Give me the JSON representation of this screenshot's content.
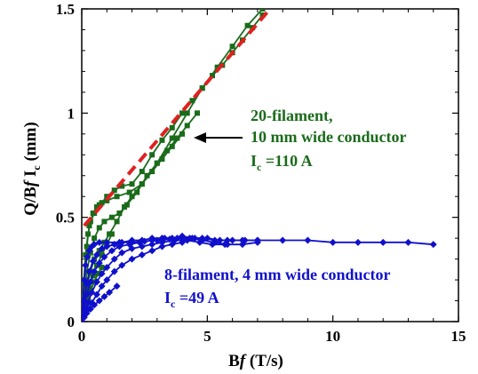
{
  "chart_data": {
    "type": "line",
    "xlabel_main": "B",
    "xlabel_italic": "f",
    "xlabel_unit": " (T/s)",
    "ylabel_main": "Q/B",
    "ylabel_italic": "f",
    "ylabel_I": " I",
    "ylabel_sub": "c",
    "ylabel_unit": " (mm)",
    "xlim": [
      0,
      15
    ],
    "ylim": [
      0,
      1.5
    ],
    "xticks": [
      0,
      5,
      10,
      15
    ],
    "yticks": [
      0,
      0.5,
      1,
      1.5
    ],
    "ytick_labels": [
      "0",
      "0.5",
      "1",
      "1.5"
    ],
    "grid": false,
    "annotations": {
      "green_line1": "20-filament,",
      "green_line2": "10 mm wide conductor",
      "green_ic_I": "I",
      "green_ic_sub": "c",
      "green_ic_val": " =110 A",
      "blue_line1": "8-filament, 4 mm wide conductor",
      "blue_ic_I": "I",
      "blue_ic_sub": "c",
      "blue_ic_val": " =49 A"
    },
    "colors": {
      "green": "#1a6b1a",
      "blue": "#1010cc",
      "red": "#e02020"
    },
    "series": [
      {
        "group": "green",
        "style": "markers",
        "x": [
          0.0,
          0.08,
          0.15,
          0.25,
          0.35,
          0.5,
          0.7,
          1.0,
          1.4,
          1.9,
          2.4,
          3.0,
          3.6,
          4.2,
          4.8,
          5.4,
          6.0,
          6.6,
          7.2
        ],
        "y": [
          0.0,
          0.18,
          0.32,
          0.42,
          0.48,
          0.52,
          0.56,
          0.58,
          0.6,
          0.62,
          0.66,
          0.76,
          0.88,
          1.0,
          1.12,
          1.22,
          1.32,
          1.42,
          1.5
        ]
      },
      {
        "group": "green",
        "style": "markers",
        "x": [
          0.0,
          0.1,
          0.2,
          0.3,
          0.45,
          0.6,
          0.8,
          1.0,
          1.3,
          1.6,
          2.0,
          2.4,
          2.8,
          3.2,
          3.6,
          4.0,
          4.4,
          4.8,
          5.2,
          5.6,
          6.0,
          6.4,
          6.8,
          7.2
        ],
        "y": [
          0.0,
          0.2,
          0.36,
          0.46,
          0.52,
          0.55,
          0.57,
          0.6,
          0.63,
          0.65,
          0.66,
          0.72,
          0.8,
          0.87,
          0.93,
          1.0,
          1.06,
          1.12,
          1.18,
          1.23,
          1.29,
          1.35,
          1.41,
          1.47
        ]
      },
      {
        "group": "green",
        "style": "markers",
        "x": [
          0.0,
          0.1,
          0.2,
          0.35,
          0.5,
          0.7,
          0.9,
          1.2,
          1.5,
          1.8,
          2.2,
          2.6,
          3.0,
          3.4,
          3.8,
          4.2,
          4.6
        ],
        "y": [
          0.0,
          0.12,
          0.24,
          0.33,
          0.4,
          0.45,
          0.48,
          0.5,
          0.52,
          0.56,
          0.62,
          0.7,
          0.76,
          0.82,
          0.88,
          0.94,
          1.0
        ]
      },
      {
        "group": "green",
        "style": "markers",
        "x": [
          0.0,
          0.1,
          0.2,
          0.35,
          0.5,
          0.7,
          0.9,
          1.1,
          1.4,
          1.7,
          2.0,
          2.4,
          2.8,
          3.2,
          3.6,
          4.0
        ],
        "y": [
          0.0,
          0.08,
          0.17,
          0.24,
          0.3,
          0.34,
          0.38,
          0.42,
          0.48,
          0.55,
          0.6,
          0.66,
          0.72,
          0.78,
          0.84,
          0.9
        ]
      },
      {
        "group": "green",
        "style": "markers",
        "x": [
          0.0,
          0.1,
          0.2,
          0.3,
          0.45,
          0.6,
          0.8,
          1.0,
          1.2
        ],
        "y": [
          0.0,
          0.05,
          0.1,
          0.16,
          0.22,
          0.27,
          0.32,
          0.37,
          0.42
        ]
      },
      {
        "group": "green",
        "style": "markers",
        "x": [
          0.0,
          0.08,
          0.15,
          0.25,
          0.35,
          0.5,
          0.65,
          0.8
        ],
        "y": [
          0.0,
          0.03,
          0.07,
          0.11,
          0.15,
          0.19,
          0.23,
          0.26
        ]
      },
      {
        "group": "blue",
        "style": "markers",
        "x": [
          0.0,
          0.05,
          0.1,
          0.15,
          0.22,
          0.3,
          0.4,
          0.5,
          0.7,
          1.0,
          1.5,
          2.0,
          2.5,
          3.0,
          3.5,
          4.0,
          4.5,
          5.0,
          5.5,
          6.0,
          6.5,
          7.0,
          8.0,
          9.0,
          10.0,
          11.0,
          12.0,
          13.0,
          14.0
        ],
        "y": [
          0.0,
          0.1,
          0.2,
          0.27,
          0.31,
          0.34,
          0.36,
          0.37,
          0.38,
          0.38,
          0.38,
          0.38,
          0.385,
          0.39,
          0.395,
          0.4,
          0.4,
          0.4,
          0.39,
          0.39,
          0.39,
          0.39,
          0.39,
          0.39,
          0.38,
          0.38,
          0.38,
          0.38,
          0.37
        ]
      },
      {
        "group": "blue",
        "style": "markers",
        "x": [
          0.0,
          0.1,
          0.2,
          0.3,
          0.45,
          0.6,
          0.8,
          1.0,
          1.3,
          1.6,
          2.0,
          2.4,
          2.8,
          3.2,
          3.6,
          4.0,
          4.4,
          4.8,
          5.3,
          5.8,
          6.4,
          7.0
        ],
        "y": [
          0.0,
          0.1,
          0.18,
          0.24,
          0.29,
          0.32,
          0.35,
          0.36,
          0.37,
          0.38,
          0.39,
          0.39,
          0.4,
          0.4,
          0.4,
          0.41,
          0.4,
          0.4,
          0.39,
          0.39,
          0.39,
          0.39
        ]
      },
      {
        "group": "blue",
        "style": "markers",
        "x": [
          0.0,
          0.1,
          0.2,
          0.35,
          0.5,
          0.7,
          0.9,
          1.2,
          1.5,
          1.9,
          2.3,
          2.8,
          3.3,
          3.8,
          4.3,
          4.8,
          5.3,
          5.8,
          6.4,
          7.0
        ],
        "y": [
          0.0,
          0.07,
          0.13,
          0.19,
          0.24,
          0.28,
          0.31,
          0.34,
          0.36,
          0.37,
          0.38,
          0.39,
          0.4,
          0.4,
          0.4,
          0.39,
          0.38,
          0.37,
          0.37,
          0.38
        ]
      },
      {
        "group": "blue",
        "style": "markers",
        "x": [
          0.0,
          0.1,
          0.25,
          0.4,
          0.6,
          0.8,
          1.0,
          1.3,
          1.6,
          2.0,
          2.4,
          2.8,
          3.2,
          3.7,
          4.2,
          4.7,
          5.2,
          5.7
        ],
        "y": [
          0.0,
          0.04,
          0.09,
          0.14,
          0.19,
          0.23,
          0.26,
          0.3,
          0.33,
          0.35,
          0.36,
          0.37,
          0.38,
          0.39,
          0.39,
          0.38,
          0.37,
          0.37
        ]
      },
      {
        "group": "blue",
        "style": "markers",
        "x": [
          0.0,
          0.1,
          0.25,
          0.4,
          0.6,
          0.8,
          1.0,
          1.3,
          1.6,
          2.0,
          2.4,
          2.8,
          3.2,
          3.6,
          4.0
        ],
        "y": [
          0.0,
          0.03,
          0.06,
          0.09,
          0.13,
          0.17,
          0.2,
          0.24,
          0.27,
          0.3,
          0.32,
          0.34,
          0.36,
          0.37,
          0.38
        ]
      },
      {
        "group": "blue",
        "style": "markers",
        "x": [
          0.0,
          0.1,
          0.2,
          0.35,
          0.5,
          0.7,
          0.9,
          1.1,
          1.4
        ],
        "y": [
          0.0,
          0.02,
          0.04,
          0.06,
          0.08,
          0.1,
          0.12,
          0.14,
          0.17
        ]
      },
      {
        "group": "red",
        "style": "dashed",
        "x": [
          0.1,
          7.5
        ],
        "y": [
          0.46,
          1.5
        ]
      }
    ]
  }
}
